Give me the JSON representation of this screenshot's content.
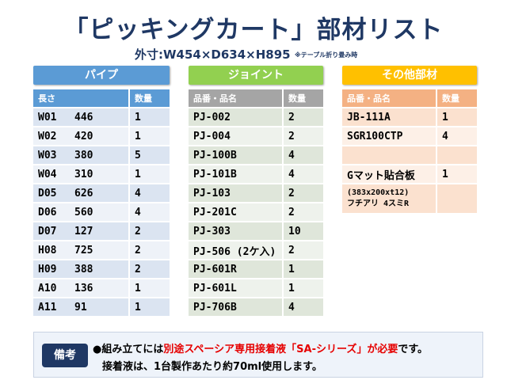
{
  "title": "「ピッキングカート」部材リスト",
  "dims": "外寸:W454×D634×H895",
  "dims_note": "※テープル折り畳み時",
  "pipes": {
    "header": "パイプ",
    "columns": [
      "長さ",
      "数量"
    ],
    "rows": [
      {
        "code": "W01",
        "length": "446",
        "qty": "1"
      },
      {
        "code": "W02",
        "length": "420",
        "qty": "1"
      },
      {
        "code": "W03",
        "length": "380",
        "qty": "5"
      },
      {
        "code": "W04",
        "length": "310",
        "qty": "1"
      },
      {
        "code": "D05",
        "length": "626",
        "qty": "4"
      },
      {
        "code": "D06",
        "length": "560",
        "qty": "4"
      },
      {
        "code": "D07",
        "length": "127",
        "qty": "2"
      },
      {
        "code": "H08",
        "length": "725",
        "qty": "2"
      },
      {
        "code": "H09",
        "length": "388",
        "qty": "2"
      },
      {
        "code": "A10",
        "length": "136",
        "qty": "1"
      },
      {
        "code": "A11",
        "length": "91",
        "qty": "1"
      }
    ]
  },
  "joints": {
    "header": "ジョイント",
    "columns": [
      "品番・品名",
      "数量"
    ],
    "rows": [
      {
        "name": "PJ-002",
        "qty": "2"
      },
      {
        "name": "PJ-004",
        "qty": "2"
      },
      {
        "name": "PJ-100B",
        "qty": "4"
      },
      {
        "name": "PJ-101B",
        "qty": "4"
      },
      {
        "name": "PJ-103",
        "qty": "2"
      },
      {
        "name": "PJ-201C",
        "qty": "2"
      },
      {
        "name": "PJ-303",
        "qty": "10"
      },
      {
        "name": "PJ-506 (2ケ入)",
        "qty": "2"
      },
      {
        "name": "PJ-601R",
        "qty": "1"
      },
      {
        "name": "PJ-601L",
        "qty": "1"
      },
      {
        "name": "PJ-706B",
        "qty": "4"
      }
    ]
  },
  "others": {
    "header": "その他部材",
    "columns": [
      "品番・品名",
      "数量"
    ],
    "rows": [
      {
        "name": "JB-111A",
        "qty": "1"
      },
      {
        "name": "SGR100CTP",
        "qty": "4"
      },
      {
        "name": "",
        "qty": ""
      },
      {
        "name": "Gマット貼合板",
        "qty": "1"
      }
    ],
    "detail_line1": "(383x200xt12)",
    "detail_line2": "フチアリ 4スミR"
  },
  "note": {
    "badge": "備考",
    "line1_pre": "●組み立てには",
    "line1_red": "別途スペーシア専用接着液「SA-シリーズ」が必要",
    "line1_post": "です。",
    "line2": "接着液は、1台製作あたり約70ml使用します。"
  }
}
